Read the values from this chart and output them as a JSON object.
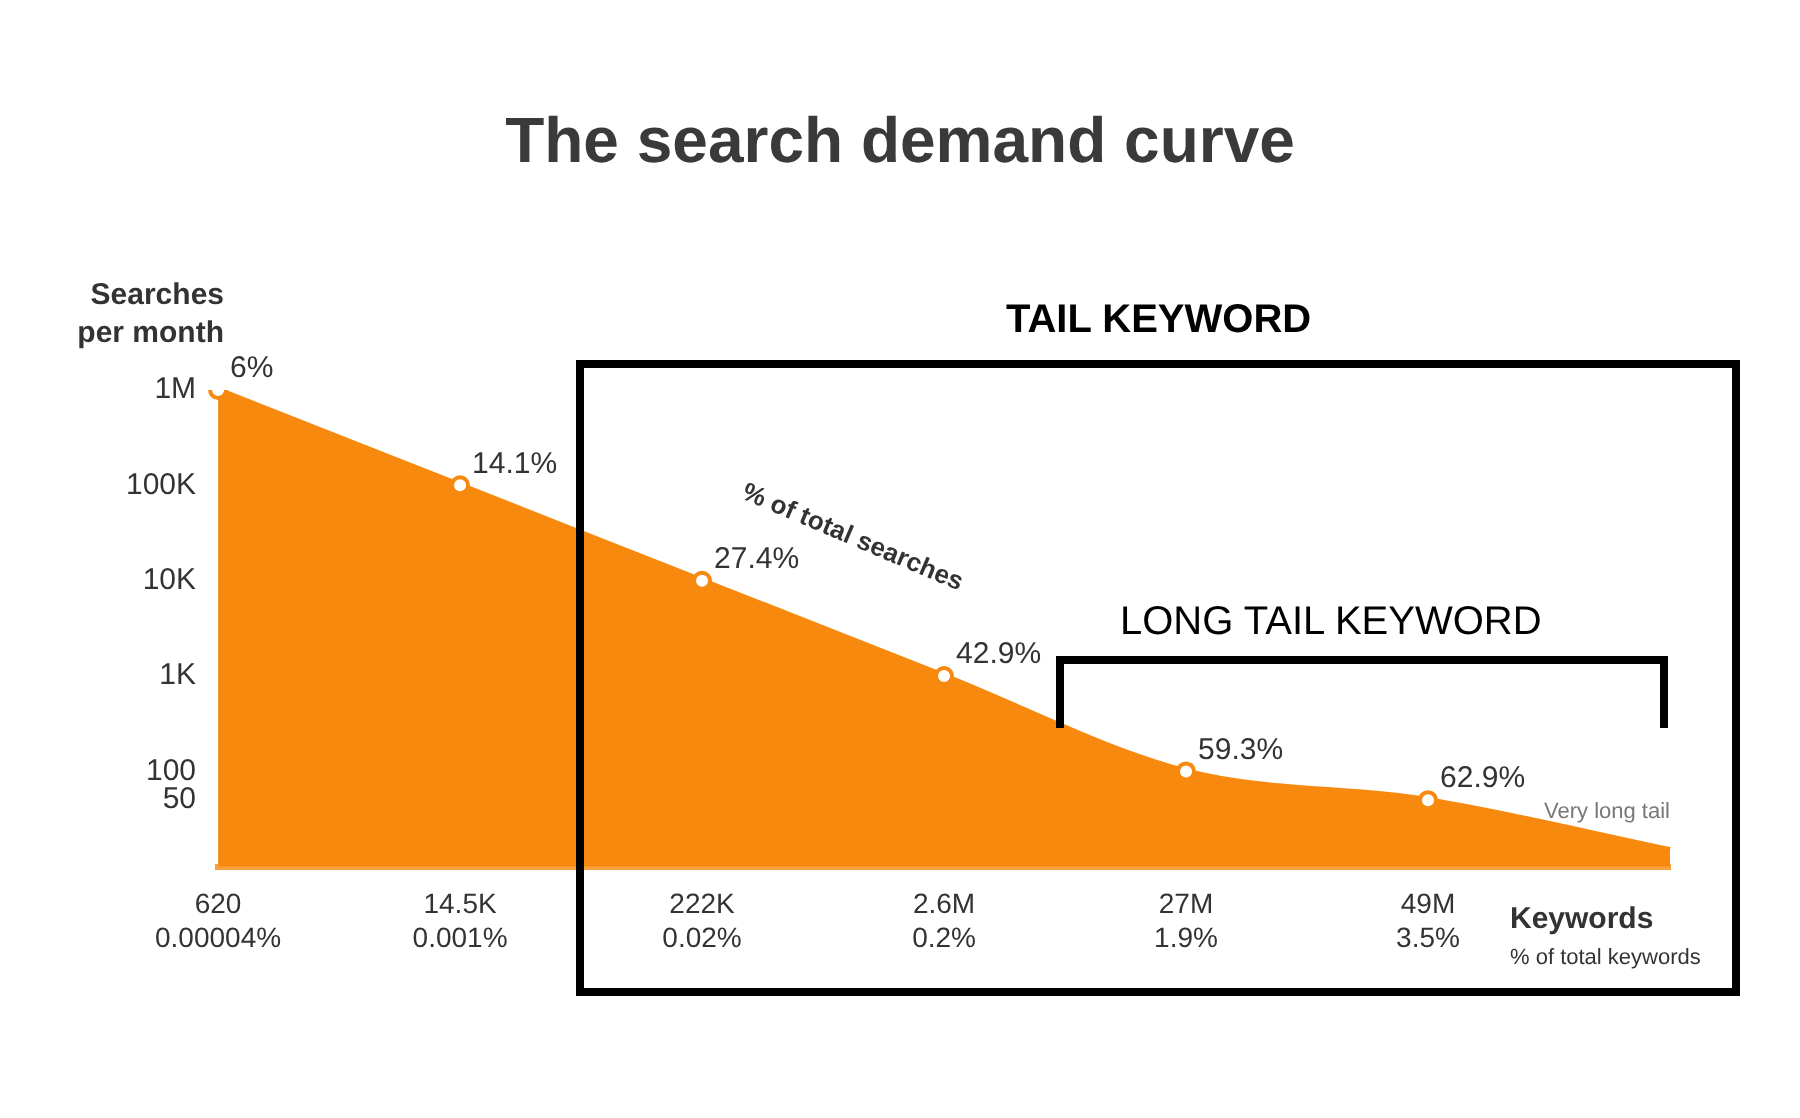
{
  "chart_data": {
    "type": "area",
    "title": "The search demand curve",
    "ylabel": "Searches per month",
    "xlabel": "Keywords",
    "categories": [
      "620\n0.00004%",
      "14.5K\n0.001%",
      "222K\n0.02%",
      "2.6M\n0.2%",
      "27M\n1.9%",
      "49M\n3.5%",
      null
    ],
    "values": [
      1000000,
      100000,
      10000,
      1000,
      100,
      50,
      15
    ],
    "color": "#f7890f",
    "log": true,
    "ylim": [
      10,
      1000000
    ],
    "yticks": [
      {
        "value": 50,
        "label": "50"
      },
      {
        "value": 100,
        "label": "100"
      },
      {
        "value": 1000,
        "label": "1K"
      },
      {
        "value": 10000,
        "label": "10K"
      },
      {
        "value": 100000,
        "label": "100K"
      },
      {
        "value": 1000000,
        "label": "1M"
      }
    ],
    "marker": "circle",
    "legend": false,
    "annotations": [
      "TAIL KEYWORD",
      "LONG TAIL KEYWORD",
      "% of total searches",
      "Very long tail",
      "% of total keywords",
      {
        "text": "6%",
        "x": "620\n0.00004%",
        "y": 1000000
      },
      {
        "text": "14.1%",
        "x": "14.5K\n0.001%",
        "y": 100000
      },
      {
        "text": "27.4%",
        "x": "222K\n0.02%",
        "y": 10000
      },
      {
        "text": "42.9%",
        "x": "2.6M\n0.2%",
        "y": 1000
      },
      {
        "text": "59.3%",
        "x": "27M\n1.9%",
        "y": 100
      },
      {
        "text": "62.9%",
        "x": "49M\n3.5%",
        "y": 50
      }
    ]
  }
}
